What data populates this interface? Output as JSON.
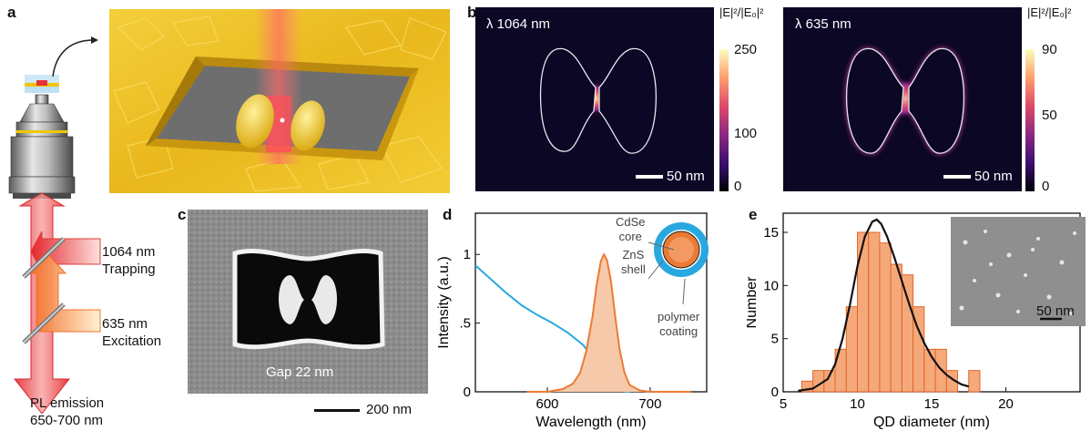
{
  "panels": {
    "a": "a",
    "b": "b",
    "c": "c",
    "d": "d",
    "e": "e"
  },
  "panel_a": {
    "trap_label_1": "1064 nm",
    "trap_label_2": "Trapping",
    "exc_label_1": "635 nm",
    "exc_label_2": "Excitation",
    "emi_label_1": "PL emission",
    "emi_label_2": "650-700 nm"
  },
  "panel_b": {
    "map1_title": "λ 1064 nm",
    "map2_title": "λ 635 nm",
    "colorbar_label": "|E|²/|E₀|²",
    "cb1_ticks": [
      "250",
      "100",
      "0"
    ],
    "cb2_ticks": [
      "90",
      "50",
      "0"
    ],
    "scalebar": "50 nm",
    "colormap": [
      "#000004",
      "#3b0f70",
      "#8c2981",
      "#de4968",
      "#fe9f6d",
      "#fcfdbf"
    ]
  },
  "panel_c": {
    "gap_label": "Gap 22 nm",
    "scalebar": "200 nm"
  },
  "panel_d": {
    "legend_core": "CdSe\ncore",
    "legend_shell": "ZnS\nshell",
    "legend_coating": "polymer\ncoating",
    "chart_data": {
      "type": "line",
      "xlabel": "Wavelength (nm)",
      "ylabel": "Intensity (a.u.)",
      "xticks": [
        "600",
        "700"
      ],
      "yticks": [
        "0",
        ".5",
        "1"
      ],
      "xlim": [
        530,
        755
      ],
      "ylim": [
        0,
        1.3
      ],
      "series": [
        {
          "color": "#29a8e0",
          "x": [
            530,
            545,
            560,
            575,
            590,
            605,
            620,
            635,
            645,
            655,
            665,
            672,
            680
          ],
          "values": [
            0.92,
            0.82,
            0.72,
            0.63,
            0.56,
            0.5,
            0.43,
            0.34,
            0.24,
            0.12,
            0.04,
            0.01,
            0.0
          ]
        },
        {
          "color": "#ec7a34",
          "fill": "#f7c9ab",
          "x": [
            580,
            600,
            615,
            625,
            632,
            638,
            644,
            648,
            652,
            655,
            658,
            662,
            666,
            670,
            675,
            680,
            690,
            700,
            710,
            740
          ],
          "values": [
            0.0,
            0.0,
            0.02,
            0.06,
            0.14,
            0.3,
            0.55,
            0.78,
            0.95,
            1.0,
            0.96,
            0.8,
            0.55,
            0.32,
            0.14,
            0.05,
            0.01,
            0.0,
            0.0,
            0.0
          ]
        }
      ]
    }
  },
  "panel_e": {
    "scalebar": "50 nm",
    "chart_data": {
      "type": "bar",
      "xlabel": "QD diameter (nm)",
      "ylabel": "Number",
      "xticks": [
        "5",
        "10",
        "15",
        "20"
      ],
      "yticks": [
        "0",
        "5",
        "10",
        "15"
      ],
      "xlim": [
        5,
        25
      ],
      "ylim": [
        0,
        16.8
      ],
      "bin_width": 0.75,
      "bin_starts": [
        5.5,
        6.25,
        7.0,
        7.75,
        8.5,
        9.25,
        10.0,
        10.75,
        11.5,
        12.25,
        13.0,
        13.75,
        14.5,
        15.25,
        16.0,
        16.75,
        17.5
      ],
      "counts": [
        0,
        1,
        2,
        2,
        4,
        8,
        15,
        15,
        14,
        12,
        11,
        8,
        4,
        4,
        2,
        0,
        2
      ],
      "fit_x": [
        6,
        7,
        8,
        8.5,
        9,
        9.5,
        10,
        10.5,
        11,
        11.3,
        11.6,
        12,
        12.5,
        13,
        13.5,
        14,
        14.5,
        15,
        15.5,
        16,
        16.5,
        17,
        17.5
      ],
      "fit_y": [
        0.1,
        0.3,
        1.2,
        2.6,
        5.0,
        8.2,
        11.8,
        14.6,
        16.0,
        16.2,
        15.8,
        14.6,
        12.6,
        10.4,
        8.2,
        6.2,
        4.6,
        3.3,
        2.3,
        1.6,
        1.1,
        0.7,
        0.5
      ]
    }
  }
}
